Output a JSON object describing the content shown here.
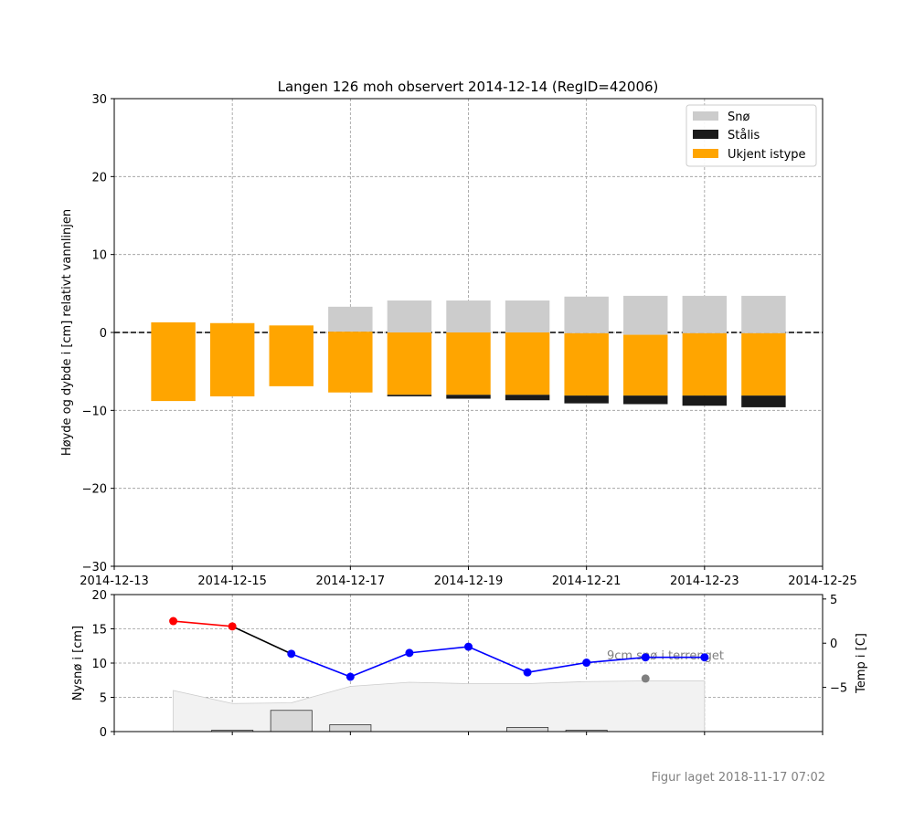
{
  "chart_data": [
    {
      "type": "bar",
      "title": "Langen 126 moh observert 2014-12-14 (RegID=42006)",
      "xlabel": "",
      "ylabel": "Høyde og dybde i [cm] relativt vannlinjen",
      "xlim": [
        "2014-12-13",
        "2014-12-25"
      ],
      "ylim": [
        -30,
        30
      ],
      "yticks": [
        -30,
        -20,
        -10,
        0,
        10,
        20,
        30
      ],
      "ytick_labels": [
        "−30",
        "−20",
        "−10",
        "0",
        "10",
        "20",
        "30"
      ],
      "xticks": [
        "2014-12-13",
        "2014-12-15",
        "2014-12-17",
        "2014-12-19",
        "2014-12-21",
        "2014-12-23",
        "2014-12-25"
      ],
      "grid": true,
      "legend_position": "top-right",
      "waterline": 0,
      "legend": [
        {
          "label": "Snø",
          "color": "#cccccc"
        },
        {
          "label": "Stålis",
          "color": "#1a1a1a"
        },
        {
          "label": "Ukjent istype",
          "color": "#ffa500"
        }
      ],
      "columns": [
        {
          "date": "2014-12-14",
          "segments": [
            {
              "layer": "Ukjent istype",
              "from": 1.3,
              "to": -8.8
            }
          ]
        },
        {
          "date": "2014-12-15",
          "segments": [
            {
              "layer": "Ukjent istype",
              "from": 1.2,
              "to": -8.2
            }
          ]
        },
        {
          "date": "2014-12-16",
          "segments": [
            {
              "layer": "Ukjent istype",
              "from": 0.9,
              "to": -6.9
            }
          ]
        },
        {
          "date": "2014-12-17",
          "segments": [
            {
              "layer": "Snø",
              "from": 3.3,
              "to": 0.1
            },
            {
              "layer": "Ukjent istype",
              "from": 0.1,
              "to": -7.7
            }
          ]
        },
        {
          "date": "2014-12-18",
          "segments": [
            {
              "layer": "Snø",
              "from": 4.1,
              "to": 0.0
            },
            {
              "layer": "Ukjent istype",
              "from": 0.0,
              "to": -8.0
            },
            {
              "layer": "Stålis",
              "from": -8.0,
              "to": -8.2
            }
          ]
        },
        {
          "date": "2014-12-19",
          "segments": [
            {
              "layer": "Snø",
              "from": 4.1,
              "to": 0.0
            },
            {
              "layer": "Ukjent istype",
              "from": 0.0,
              "to": -8.0
            },
            {
              "layer": "Stålis",
              "from": -8.0,
              "to": -8.5
            }
          ]
        },
        {
          "date": "2014-12-20",
          "segments": [
            {
              "layer": "Snø",
              "from": 4.1,
              "to": 0.0
            },
            {
              "layer": "Ukjent istype",
              "from": 0.0,
              "to": -8.0
            },
            {
              "layer": "Stålis",
              "from": -8.0,
              "to": -8.7
            }
          ]
        },
        {
          "date": "2014-12-21",
          "segments": [
            {
              "layer": "Snø",
              "from": 4.6,
              "to": -0.1
            },
            {
              "layer": "Ukjent istype",
              "from": -0.1,
              "to": -8.1
            },
            {
              "layer": "Stålis",
              "from": -8.1,
              "to": -9.1
            }
          ]
        },
        {
          "date": "2014-12-22",
          "segments": [
            {
              "layer": "Snø",
              "from": 4.7,
              "to": -0.3
            },
            {
              "layer": "Ukjent istype",
              "from": -0.3,
              "to": -8.1
            },
            {
              "layer": "Stålis",
              "from": -8.1,
              "to": -9.2
            }
          ]
        },
        {
          "date": "2014-12-23",
          "segments": [
            {
              "layer": "Snø",
              "from": 4.7,
              "to": -0.1
            },
            {
              "layer": "Ukjent istype",
              "from": -0.1,
              "to": -8.1
            },
            {
              "layer": "Stålis",
              "from": -8.1,
              "to": -9.4
            }
          ]
        },
        {
          "date": "2014-12-24",
          "segments": [
            {
              "layer": "Snø",
              "from": 4.7,
              "to": -0.1
            },
            {
              "layer": "Ukjent istype",
              "from": -0.1,
              "to": -8.1
            },
            {
              "layer": "Stålis",
              "from": -8.1,
              "to": -9.6
            }
          ]
        }
      ]
    },
    {
      "type": "bar",
      "xlabel": "",
      "ylabel": "Nysnø i [cm]",
      "ylabel_right": "Temp i [C]",
      "xlim": [
        "2014-12-13",
        "2014-12-25"
      ],
      "ylim": [
        0,
        20
      ],
      "yticks": [
        0,
        5,
        10,
        15,
        20
      ],
      "ylim_right": [
        -10,
        5.5
      ],
      "yticks_right": [
        -5,
        0,
        5
      ],
      "ytick_labels_right": [
        "−5",
        "0",
        "5"
      ],
      "grid": true,
      "annotation": "9cm snø i terrenget",
      "snow_depth_area": {
        "color": "#f2f2f2",
        "points": [
          [
            "2014-12-14",
            6.0
          ],
          [
            "2014-12-15",
            4.1
          ],
          [
            "2014-12-16",
            4.2
          ],
          [
            "2014-12-17",
            6.6
          ],
          [
            "2014-12-18",
            7.2
          ],
          [
            "2014-12-19",
            7.0
          ],
          [
            "2014-12-20",
            7.0
          ],
          [
            "2014-12-21",
            7.3
          ],
          [
            "2014-12-22",
            7.4
          ],
          [
            "2014-12-23",
            7.4
          ]
        ]
      },
      "new_snow_bars": [
        {
          "date": "2014-12-15",
          "value": 0.2
        },
        {
          "date": "2014-12-16",
          "value": 3.1
        },
        {
          "date": "2014-12-17",
          "value": 1.0
        },
        {
          "date": "2014-12-20",
          "value": 0.6
        },
        {
          "date": "2014-12-21",
          "value": 0.2
        }
      ],
      "temperature": [
        {
          "date": "2014-12-14",
          "value": 2.5,
          "color": "#ff0000"
        },
        {
          "date": "2014-12-15",
          "value": 1.9,
          "color": "#ff0000"
        },
        {
          "date": "2014-12-16",
          "value": -1.2,
          "color": "#0000ff"
        },
        {
          "date": "2014-12-17",
          "value": -3.8,
          "color": "#0000ff"
        },
        {
          "date": "2014-12-18",
          "value": -1.1,
          "color": "#0000ff"
        },
        {
          "date": "2014-12-19",
          "value": -0.4,
          "color": "#0000ff"
        },
        {
          "date": "2014-12-20",
          "value": -3.3,
          "color": "#0000ff"
        },
        {
          "date": "2014-12-21",
          "value": -2.2,
          "color": "#0000ff"
        },
        {
          "date": "2014-12-22",
          "value": -1.6,
          "color": "#0000ff"
        },
        {
          "date": "2014-12-23",
          "value": -1.6,
          "color": "#0000ff"
        }
      ],
      "observation_point": {
        "date": "2014-12-22",
        "value": -4.0,
        "color": "#808080"
      }
    }
  ],
  "footer": "Figur laget 2018-11-17 07:02"
}
